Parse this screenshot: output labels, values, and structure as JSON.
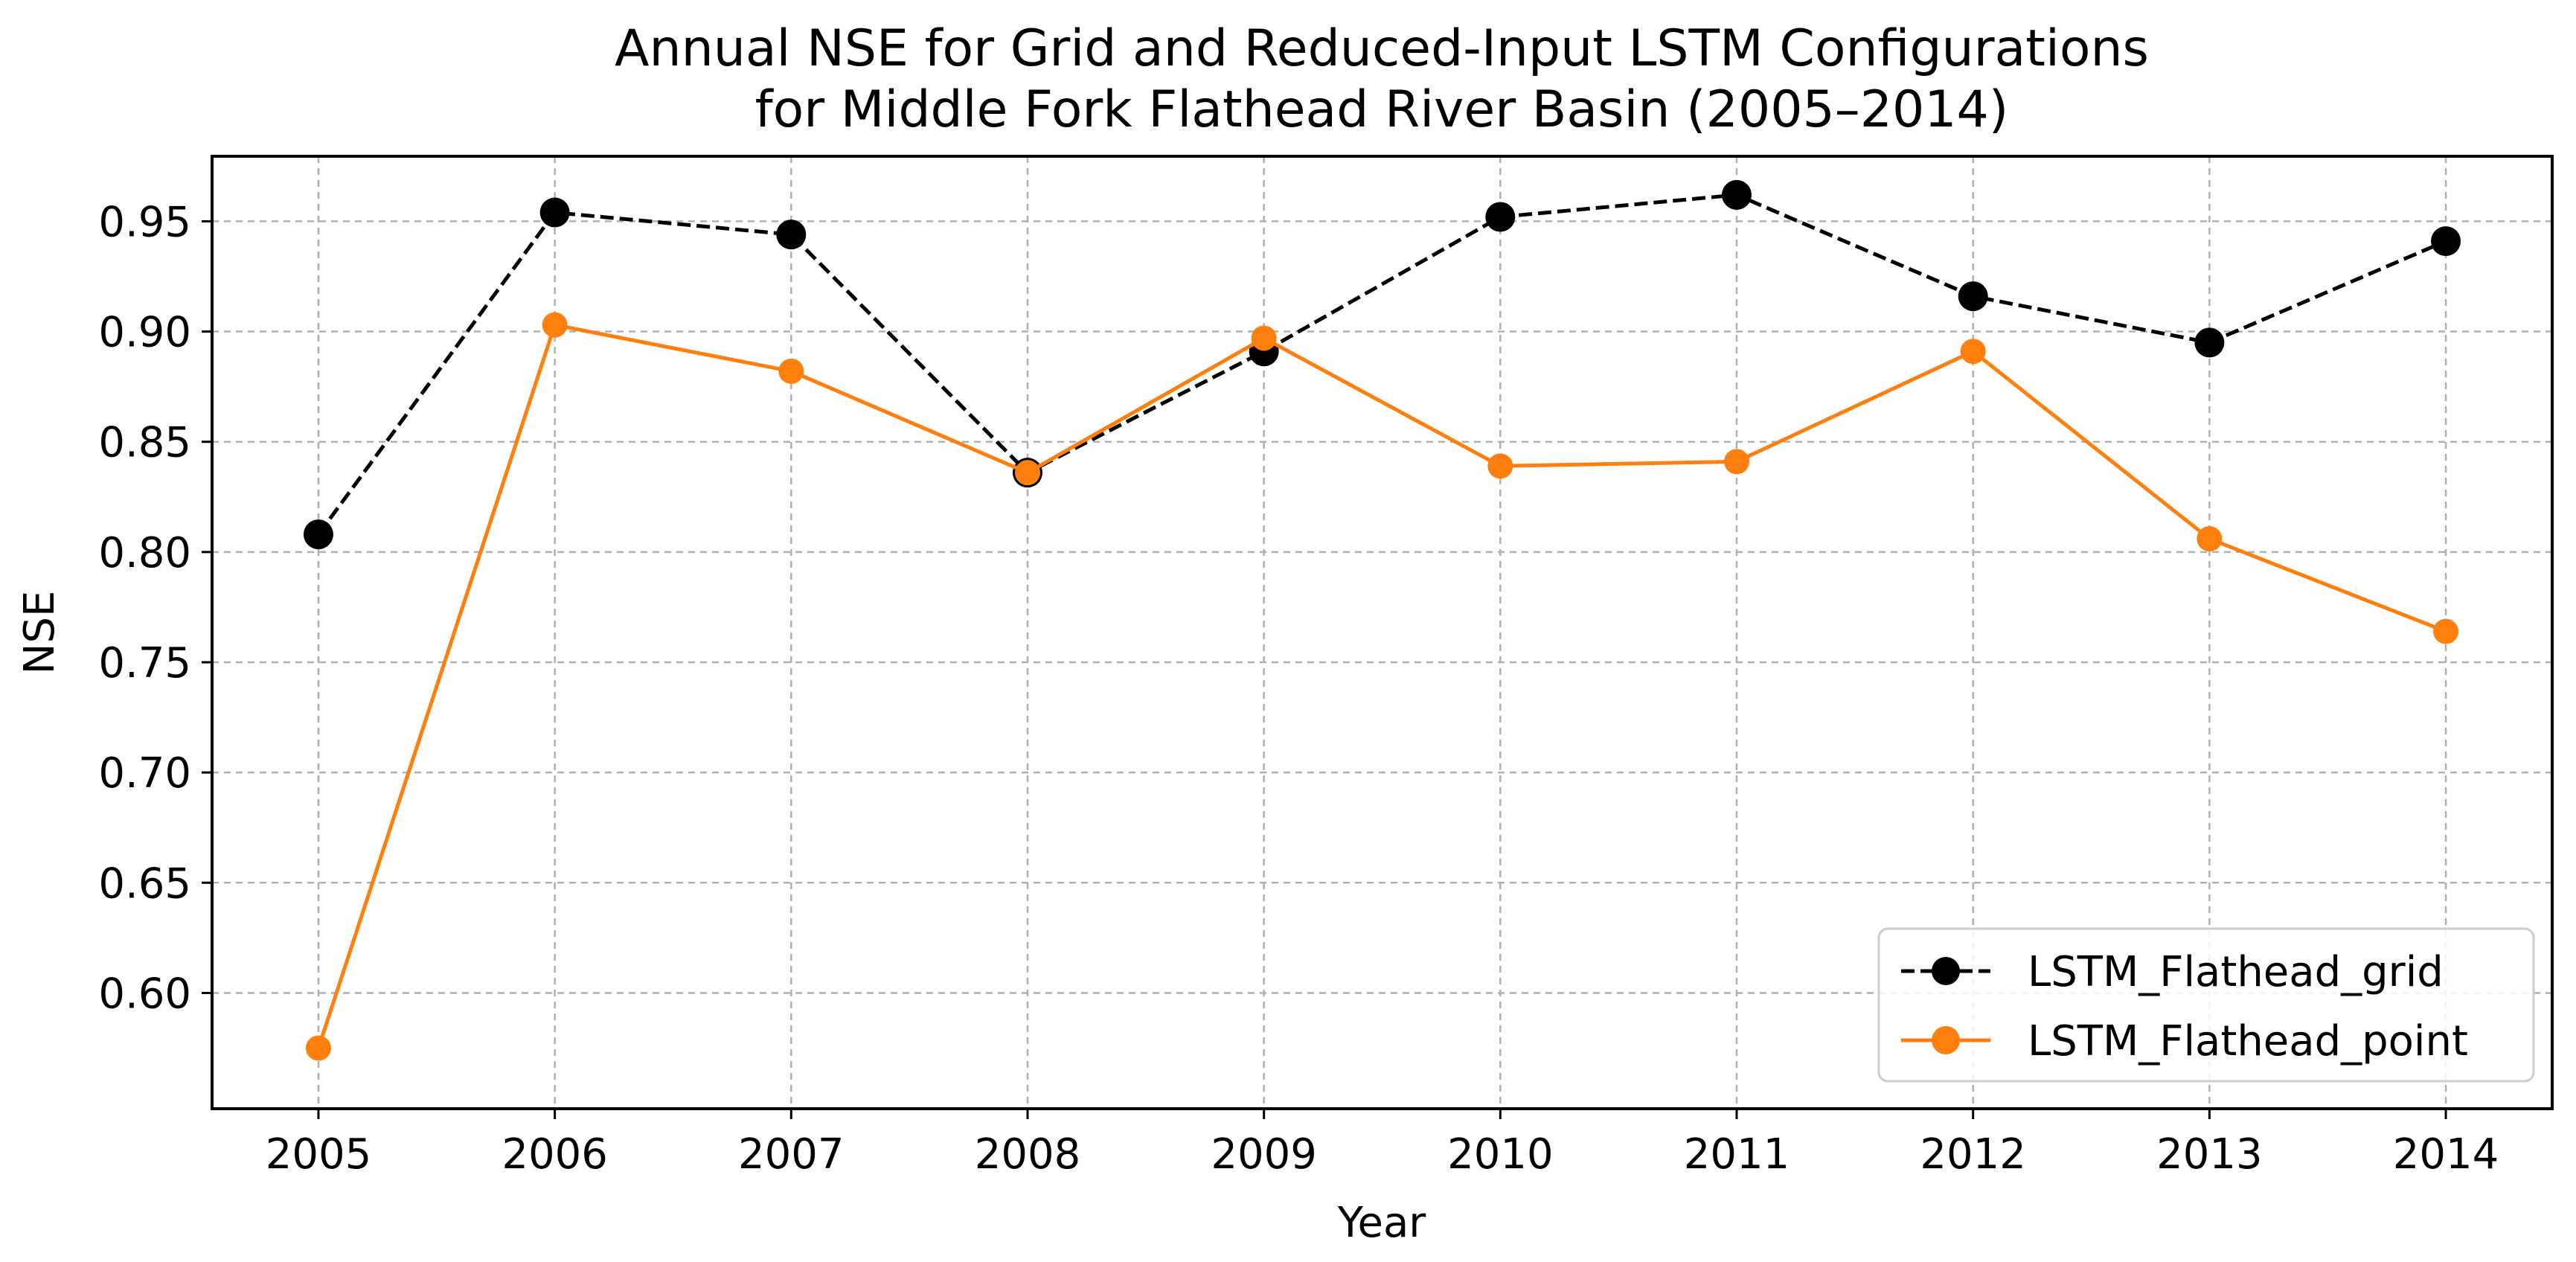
{
  "chart_data": {
    "type": "line",
    "title_lines": [
      "Annual NSE for Grid and Reduced-Input LSTM Configurations",
      "for Middle Fork Flathead River Basin (2005–2014)"
    ],
    "xlabel": "Year",
    "ylabel": "NSE",
    "x": [
      2005,
      2006,
      2007,
      2008,
      2009,
      2010,
      2011,
      2012,
      2013,
      2014
    ],
    "x_tick_labels": [
      "2005",
      "2006",
      "2007",
      "2008",
      "2009",
      "2010",
      "2011",
      "2012",
      "2013",
      "2014"
    ],
    "xlim": [
      2004.55,
      2014.45
    ],
    "ylim": [
      0.5475,
      0.9795
    ],
    "y_ticks": [
      0.6,
      0.65,
      0.7,
      0.75,
      0.8,
      0.85,
      0.9,
      0.95
    ],
    "y_tick_labels": [
      "0.60",
      "0.65",
      "0.70",
      "0.75",
      "0.80",
      "0.85",
      "0.90",
      "0.95"
    ],
    "grid": true,
    "legend_position": "lower-right",
    "series": [
      {
        "name": "LSTM_Flathead_grid",
        "color": "#000000",
        "line_style": "dashed",
        "values": [
          0.808,
          0.954,
          0.944,
          0.836,
          0.891,
          0.952,
          0.962,
          0.916,
          0.895,
          0.941
        ]
      },
      {
        "name": "LSTM_Flathead_point",
        "color": "#ff7f0e",
        "line_style": "solid",
        "values": [
          0.575,
          0.903,
          0.882,
          0.836,
          0.897,
          0.839,
          0.841,
          0.891,
          0.806,
          0.764
        ]
      }
    ]
  }
}
